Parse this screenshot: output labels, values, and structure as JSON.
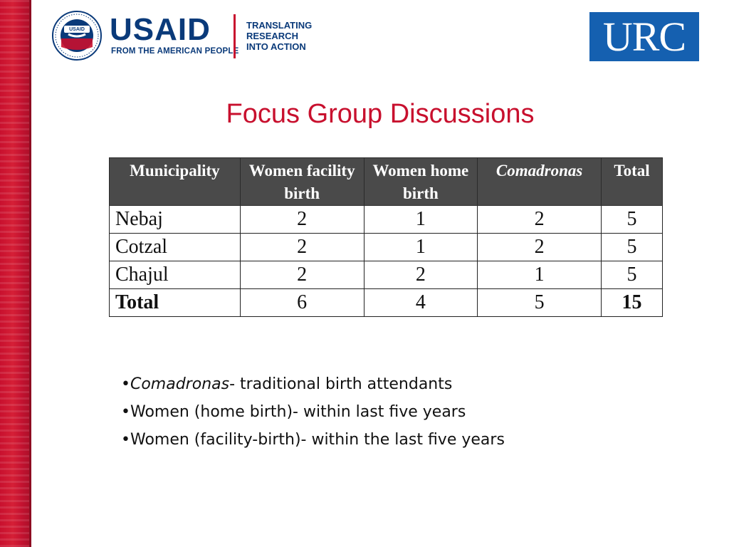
{
  "colors": {
    "accent_red": "#c8102e",
    "usaid_blue": "#0a3a7a",
    "urc_blue": "#1560b0",
    "header_gray": "#4a4a4a"
  },
  "header": {
    "usaid_logo": {
      "seal_text": "UNITED STATES AGENCY INTERNATIONAL DEVELOPMENT",
      "wordmark": "USAID",
      "subline": "FROM THE AMERICAN PEOPLE",
      "tagline": [
        "TRANSLATING",
        "RESEARCH",
        "INTO ACTION"
      ]
    },
    "urc_logo": {
      "text": "URC"
    }
  },
  "title": "Focus Group Discussions",
  "table": {
    "columns": [
      "Municipality",
      "Women facility birth",
      "Women home birth",
      "Comadronas",
      "Total"
    ],
    "rows": [
      {
        "municipality": "Nebaj",
        "women_facility": "2",
        "women_home": "1",
        "comadronas": "2",
        "total": "5"
      },
      {
        "municipality": "Cotzal",
        "women_facility": "2",
        "women_home": "1",
        "comadronas": "2",
        "total": "5"
      },
      {
        "municipality": "Chajul",
        "women_facility": "2",
        "women_home": "2",
        "comadronas": "1",
        "total": "5"
      },
      {
        "municipality": "Total",
        "women_facility": "6",
        "women_home": "4",
        "comadronas": "5",
        "total": "15"
      }
    ]
  },
  "notes": [
    {
      "bullet": "•",
      "term": "Comadronas",
      "text": "- traditional birth attendants"
    },
    {
      "bullet": "•",
      "text": "Women (home birth)- within last five years"
    },
    {
      "bullet": "•",
      "text": "Women (facility-birth)- within the last five years"
    }
  ]
}
